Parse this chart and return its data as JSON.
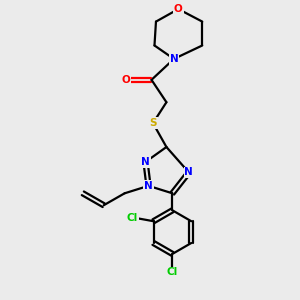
{
  "background_color": "#ebebeb",
  "bond_color": "#000000",
  "nitrogen_color": "#0000ff",
  "oxygen_color": "#ff0000",
  "sulfur_color": "#ccaa00",
  "chlorine_color": "#00cc00",
  "line_width": 1.6,
  "figsize": [
    3.0,
    3.0
  ],
  "dpi": 100,
  "xlim": [
    0,
    10
  ],
  "ylim": [
    0,
    10
  ]
}
